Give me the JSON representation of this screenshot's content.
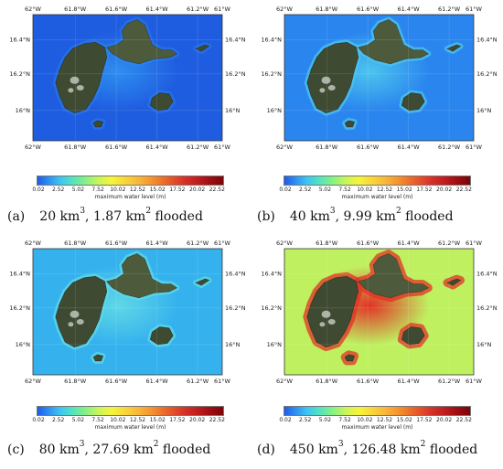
{
  "figure": {
    "longitude_labels": [
      "62°W",
      "61.8°W",
      "61.6°W",
      "61.4°W",
      "61.2°W",
      "61°W"
    ],
    "latitude_labels": [
      "16.4°N",
      "16.2°N",
      "16°N"
    ],
    "colorbar": {
      "ticks": [
        "0.02",
        "2.52",
        "5.02",
        "7.52",
        "10.02",
        "12.52",
        "15.02",
        "17.52",
        "20.02",
        "22.52"
      ],
      "title": "maximum water level (m)"
    },
    "panels": [
      {
        "id": "a",
        "label": "(a)",
        "volume": "20 km",
        "exponent": "3",
        "flooded": ", 1.87 km",
        "flooded_exponent": "2",
        "suffix": " flooded",
        "sea_color": "#1f5de0",
        "coast_color": "#2e8ef0"
      },
      {
        "id": "b",
        "label": "(b)",
        "volume": "40 km",
        "exponent": "3",
        "flooded": ", 9.99 km",
        "flooded_exponent": "2",
        "suffix": " flooded",
        "sea_color": "#2a86ee",
        "coast_color": "#4cc4ee"
      },
      {
        "id": "c",
        "label": "(c)",
        "volume": "80 km",
        "exponent": "3",
        "flooded": ", 27.69 km",
        "flooded_exponent": "2",
        "suffix": " flooded",
        "sea_color": "#35b2ee",
        "coast_color": "#5fd8e6"
      },
      {
        "id": "d",
        "label": "(d)",
        "volume": "450 km",
        "exponent": "3",
        "flooded": ", 126.48 km",
        "flooded_exponent": "2",
        "suffix": " flooded",
        "sea_color": "#bff060",
        "coast_color": "#e23226"
      }
    ]
  }
}
